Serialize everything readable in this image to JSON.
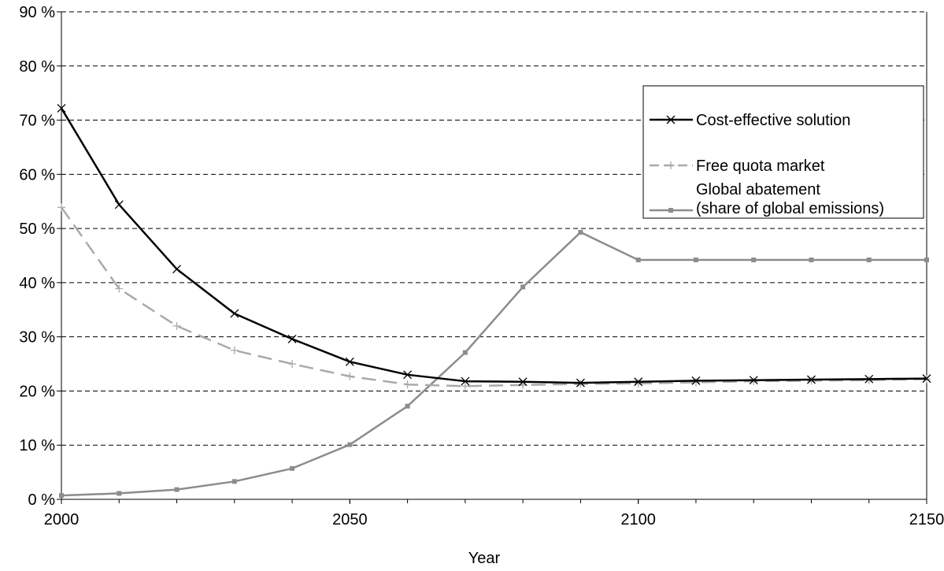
{
  "chart_data": {
    "type": "line",
    "title": "",
    "xlabel": "Year",
    "ylabel": "",
    "xlim": [
      2000,
      2150
    ],
    "ylim": [
      0,
      90
    ],
    "x_ticks": [
      "2000",
      "2050",
      "2100",
      "2150"
    ],
    "y_ticks": [
      "0 %",
      "10 %",
      "20 %",
      "30 %",
      "40 %",
      "50 %",
      "60 %",
      "70 %",
      "80 %",
      "90 %"
    ],
    "grid": "horizontal dashed",
    "legend_position": "right",
    "x": [
      2000,
      2010,
      2020,
      2030,
      2040,
      2050,
      2060,
      2070,
      2080,
      2090,
      2100,
      2110,
      2120,
      2130,
      2140,
      2150
    ],
    "series": [
      {
        "name": "Cost-effective solution",
        "color": "#000000",
        "dash": "solid",
        "marker": "x",
        "values": [
          72.2,
          54.4,
          42.5,
          34.3,
          29.6,
          25.4,
          23.0,
          21.8,
          21.7,
          21.5,
          21.7,
          21.9,
          22.0,
          22.1,
          22.2,
          22.3
        ]
      },
      {
        "name": "Free quota market",
        "color": "#aaaaaa",
        "dash": "dashed",
        "marker": "plus",
        "values": [
          53.9,
          38.9,
          32.0,
          27.5,
          25.0,
          22.7,
          21.2,
          20.9,
          21.1,
          21.3,
          21.4,
          21.6,
          21.8,
          21.9,
          22.0,
          22.2
        ]
      },
      {
        "name": "Global abatement\n(share of global emissions)",
        "name_lines": [
          "Global abatement",
          "(share of global emissions)"
        ],
        "color": "#8c8c8c",
        "dash": "solid",
        "marker": "square",
        "values": [
          0.7,
          1.1,
          1.8,
          3.3,
          5.7,
          10.1,
          17.2,
          27.1,
          39.2,
          49.3,
          44.2,
          44.2,
          44.2,
          44.2,
          44.2,
          44.2
        ]
      }
    ]
  }
}
